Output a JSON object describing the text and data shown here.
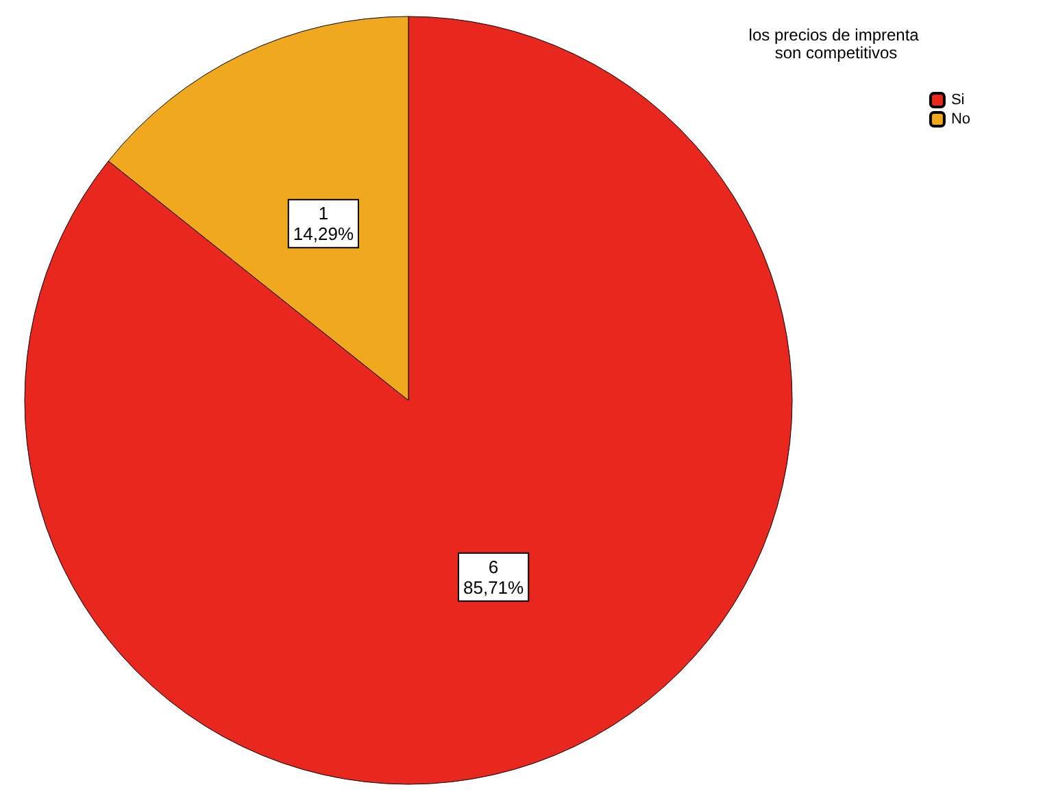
{
  "chart_data": {
    "type": "pie",
    "legend_title": "los precios de imprenta son competitivos",
    "categories": [
      "Si",
      "No"
    ],
    "values": [
      6,
      1
    ],
    "colors": [
      "#e8281e",
      "#f0a81e"
    ],
    "value_labels": [
      "6\n85,71%",
      "1\n14,29%"
    ],
    "legend": "top right"
  }
}
